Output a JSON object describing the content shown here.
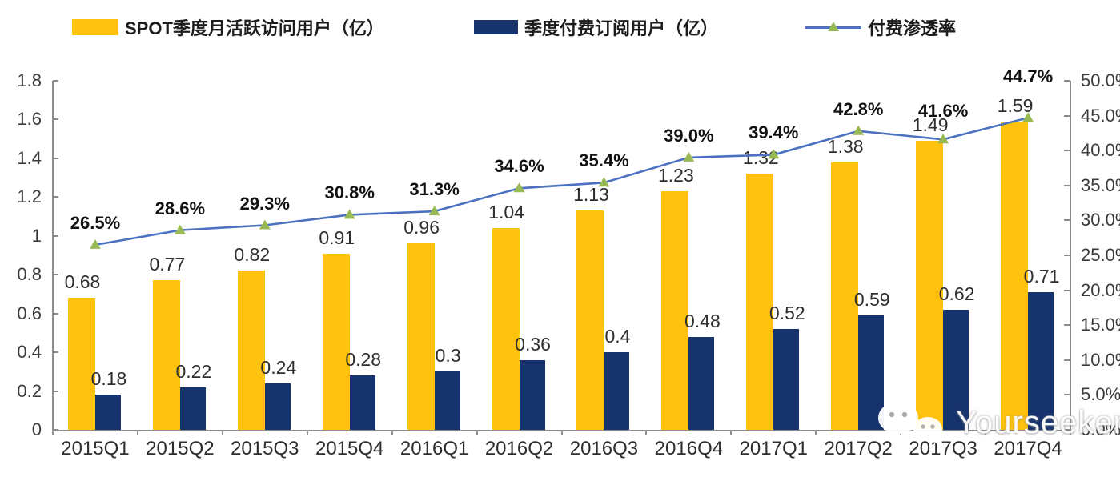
{
  "legend": {
    "items": [
      {
        "label": "SPOT季度月活跃访问用户（亿）",
        "swatch": "bar",
        "color": "#FFC20E"
      },
      {
        "label": "季度付费订阅用户（亿）",
        "swatch": "bar",
        "color": "#16336E"
      },
      {
        "label": "付费渗透率",
        "swatch": "line-triangle",
        "color": "#4A72C0",
        "marker_color": "#98B954"
      }
    ]
  },
  "watermark": {
    "text": "Yourseeker",
    "icon": "wechat-icon"
  },
  "chart_data": {
    "type": "bar",
    "subtype": "grouped bars with overlay line (dual axis)",
    "categories": [
      "2015Q1",
      "2015Q2",
      "2015Q3",
      "2015Q4",
      "2016Q1",
      "2016Q2",
      "2016Q3",
      "2016Q4",
      "2017Q1",
      "2017Q2",
      "2017Q3",
      "2017Q4"
    ],
    "series": [
      {
        "name": "SPOT季度月活跃访问用户（亿）",
        "type": "bar",
        "axis": "left",
        "color": "#FFC20E",
        "values": [
          0.68,
          0.77,
          0.82,
          0.91,
          0.96,
          1.04,
          1.13,
          1.23,
          1.32,
          1.38,
          1.49,
          1.59
        ],
        "labels": [
          "0.68",
          "0.77",
          "0.82",
          "0.91",
          "0.96",
          "1.04",
          "1.13",
          "1.23",
          "1.32",
          "1.38",
          "1.49",
          "1.59"
        ]
      },
      {
        "name": "季度付费订阅用户（亿）",
        "type": "bar",
        "axis": "left",
        "color": "#16336E",
        "values": [
          0.18,
          0.22,
          0.24,
          0.28,
          0.3,
          0.36,
          0.4,
          0.48,
          0.52,
          0.59,
          0.62,
          0.71
        ],
        "labels": [
          "0.18",
          "0.22",
          "0.24",
          "0.28",
          "0.3",
          "0.36",
          "0.4",
          "0.48",
          "0.52",
          "0.59",
          "0.62",
          "0.71"
        ]
      },
      {
        "name": "付费渗透率",
        "type": "line",
        "axis": "right",
        "color": "#4A72C0",
        "marker": "triangle",
        "marker_color": "#98B954",
        "values": [
          26.5,
          28.6,
          29.3,
          30.8,
          31.3,
          34.6,
          35.4,
          39.0,
          39.4,
          42.8,
          41.6,
          44.7
        ],
        "labels": [
          "26.5%",
          "28.6%",
          "29.3%",
          "30.8%",
          "31.3%",
          "34.6%",
          "35.4%",
          "39.0%",
          "39.4%",
          "42.8%",
          "41.6%",
          "44.7%"
        ]
      }
    ],
    "left_axis": {
      "min": 0,
      "max": 1.8,
      "ticks": [
        "0",
        "0.2",
        "0.4",
        "0.6",
        "0.8",
        "1",
        "1.2",
        "1.4",
        "1.6",
        "1.8"
      ]
    },
    "right_axis": {
      "min": 0,
      "max": 50,
      "ticks": [
        "0.0%",
        "5.0%",
        "10.0%",
        "15.0%",
        "20.0%",
        "25.0%",
        "30.0%",
        "35.0%",
        "40.0%",
        "45.0%",
        "50.0%"
      ]
    },
    "grid": false,
    "legend_position": "top",
    "title": "",
    "xlabel": "",
    "ylabel": ""
  }
}
